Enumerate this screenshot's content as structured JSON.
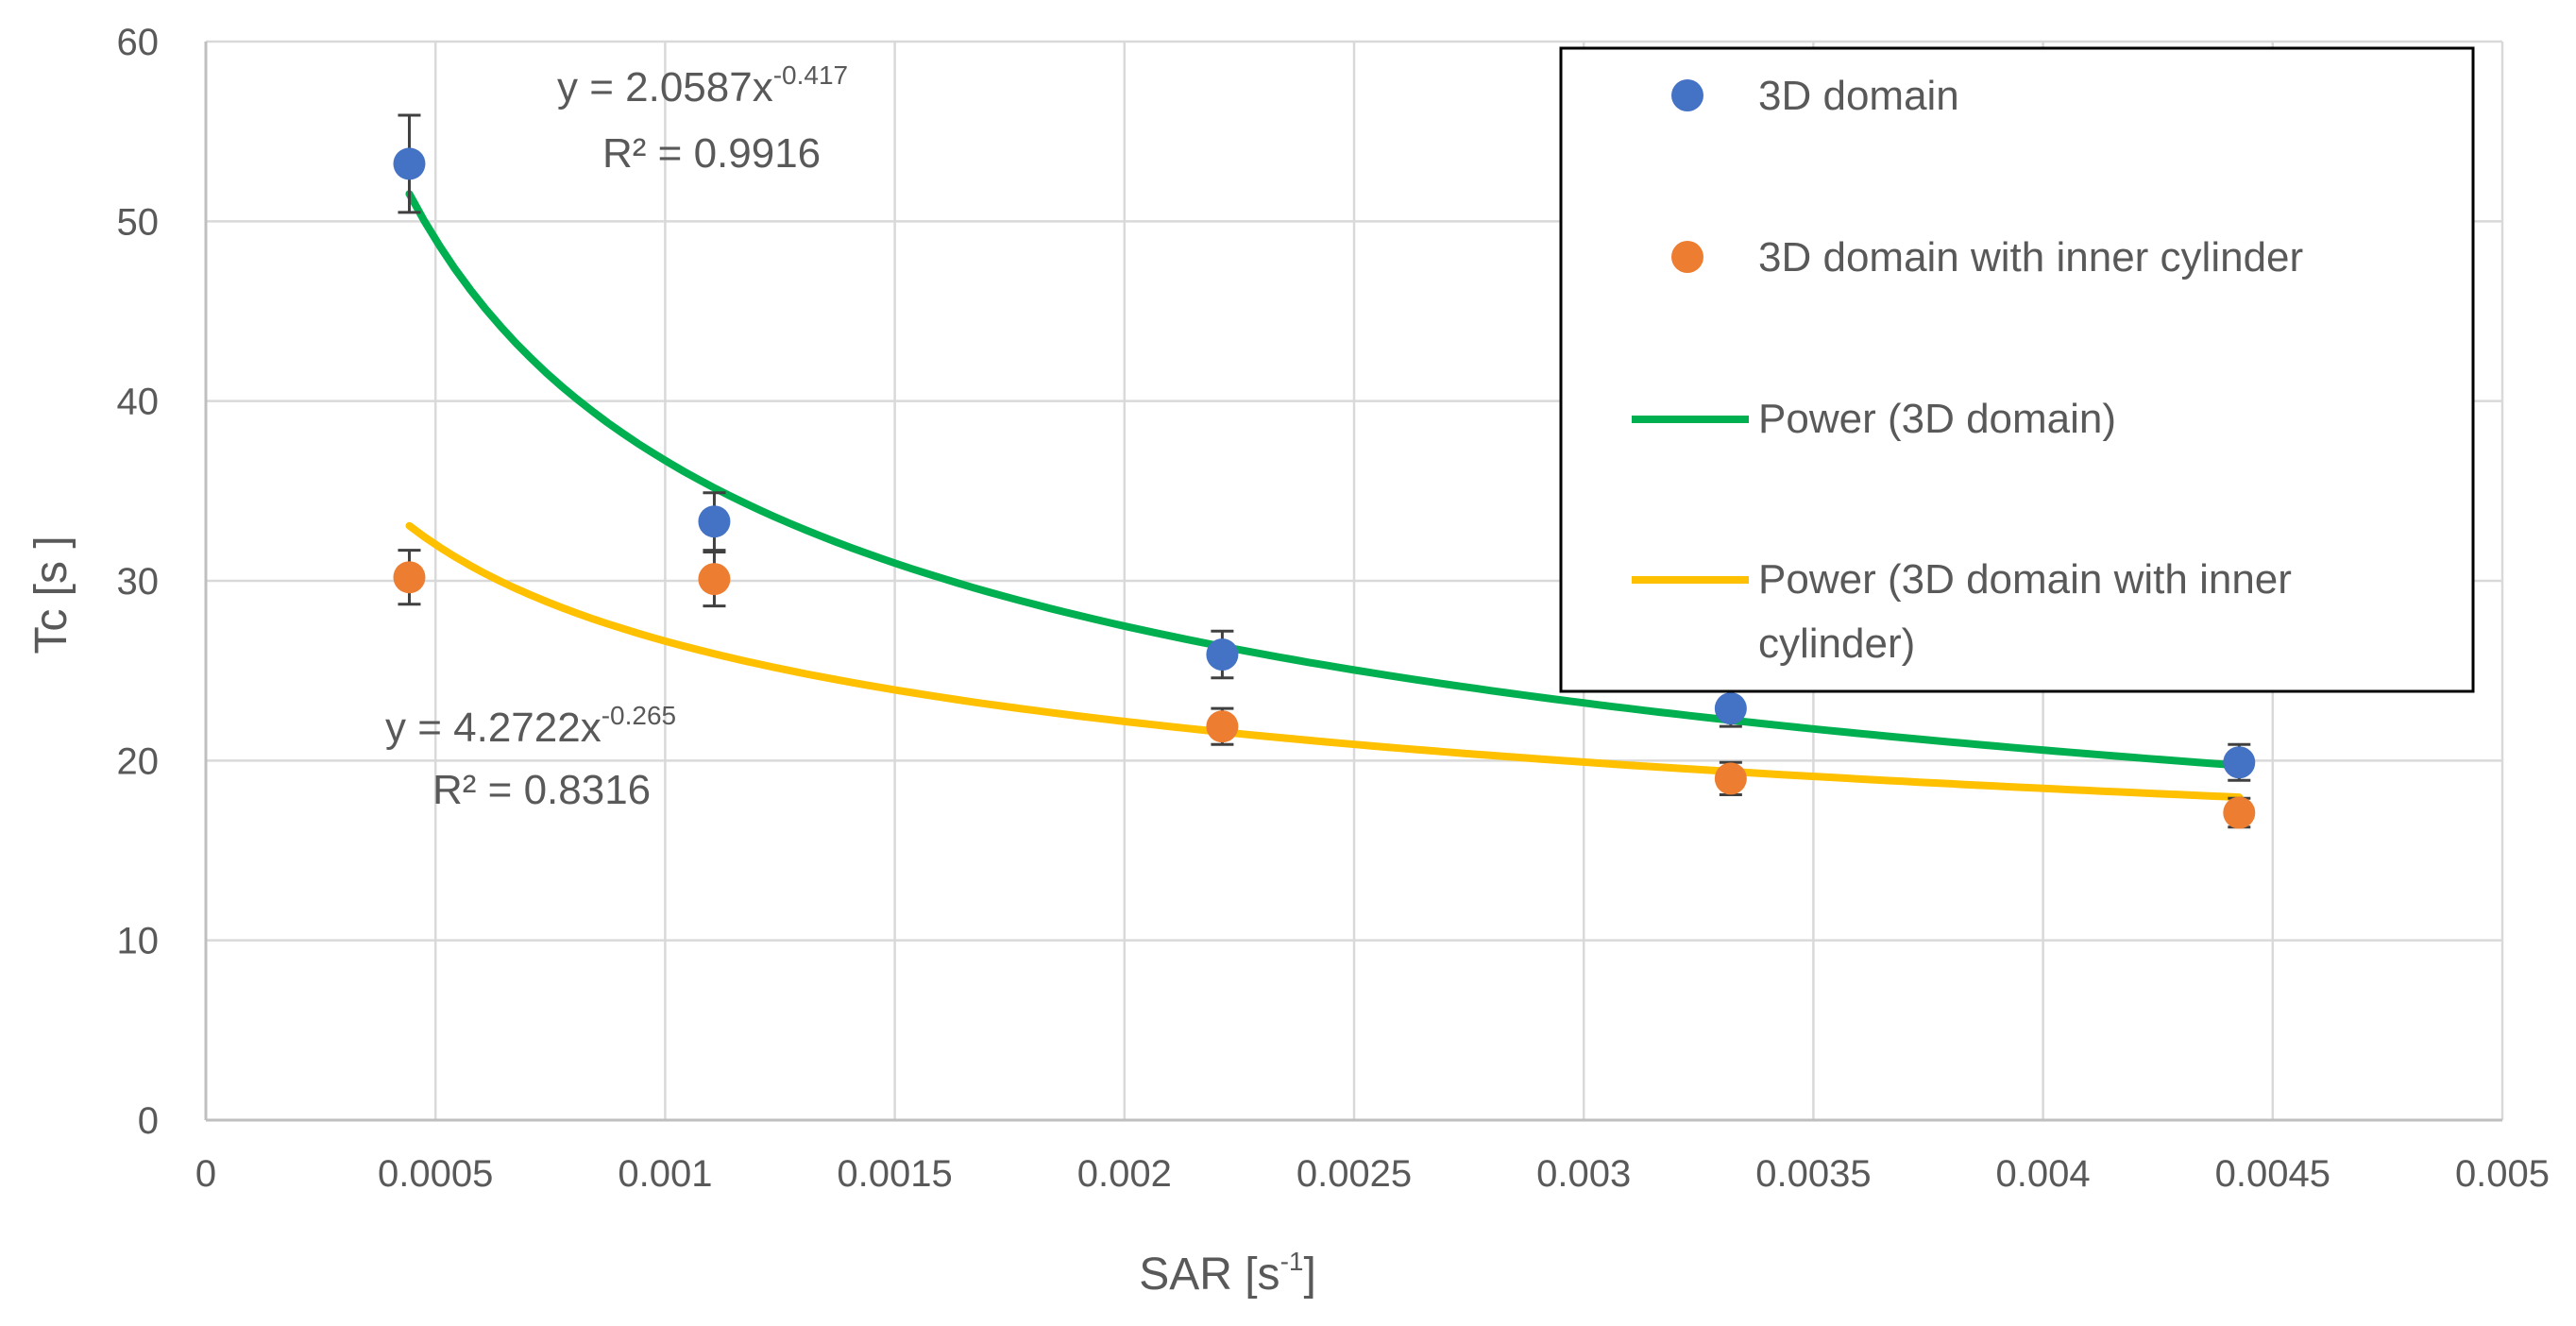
{
  "chart_data": {
    "type": "scatter",
    "title": "",
    "xlabel": "SAR  [s",
    "xlabel_sup": "-1",
    "xlabel_tail": "]",
    "ylabel": "Tc [s  ]",
    "xlim": [
      0,
      0.005
    ],
    "ylim": [
      0,
      60
    ],
    "grid": true,
    "x_ticks": [
      "0",
      "0.0005",
      "0.001",
      "0.0015",
      "0.002",
      "0.0025",
      "0.003",
      "0.0035",
      "0.004",
      "0.0045",
      "0.005"
    ],
    "y_ticks": [
      "0",
      "10",
      "20",
      "30",
      "40",
      "50",
      "60"
    ],
    "series": [
      {
        "name": "3D domain",
        "color": "#4472C4",
        "marker": "circle",
        "x": [
          0.000443,
          0.001107,
          0.002213,
          0.00332,
          0.004427
        ],
        "y": [
          53.2,
          33.3,
          25.9,
          22.9,
          19.9
        ],
        "err": [
          2.7,
          1.6,
          1.3,
          1.0,
          1.0
        ]
      },
      {
        "name": "3D domain with inner cylinder",
        "color": "#ED7D31",
        "marker": "circle",
        "x": [
          0.000443,
          0.001107,
          0.002213,
          0.00332,
          0.004427
        ],
        "y": [
          30.2,
          30.1,
          21.9,
          19.0,
          17.1
        ],
        "err": [
          1.5,
          1.5,
          1.0,
          0.9,
          0.8
        ]
      }
    ],
    "trendlines": [
      {
        "name": "Power (3D domain)",
        "color": "#00B050",
        "a": 2.0587,
        "b": -0.417,
        "x_range": [
          0.000443,
          0.004427
        ],
        "equation_base": "y = 2.0587x",
        "equation_exp": "-0.417",
        "r2_label": "R² = 0.9916"
      },
      {
        "name": "Power (3D domain with inner cylinder)",
        "color": "#FFC000",
        "a": 4.2722,
        "b": -0.265,
        "x_range": [
          0.000443,
          0.004427
        ],
        "equation_base": "y = 4.2722x",
        "equation_exp": "-0.265",
        "r2_label": "R² = 0.8316"
      }
    ],
    "legend": {
      "placement": "top-right",
      "items": [
        {
          "label": "3D domain",
          "kind": "marker",
          "color": "#4472C4"
        },
        {
          "label": "3D domain with inner cylinder",
          "kind": "marker",
          "color": "#ED7D31"
        },
        {
          "label": "Power (3D domain)",
          "kind": "line",
          "color": "#00B050"
        },
        {
          "label": "Power (3D domain with inner",
          "label_line2": "cylinder)",
          "kind": "line",
          "color": "#FFC000"
        }
      ]
    }
  }
}
